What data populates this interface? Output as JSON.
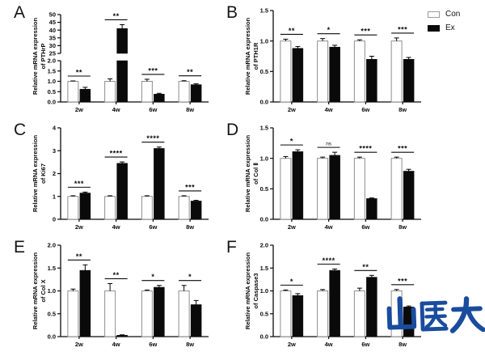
{
  "style": {
    "axis_color": "#0a0a0a",
    "con_fill": "#fefefe",
    "con_stroke": "#8f8f8f",
    "ex_fill": "#0a0a0a",
    "sig_color": "#0a0a0a"
  },
  "legend": {
    "items": [
      {
        "label": "Con",
        "fill": "#ffffff",
        "stroke": "#9a9a9a"
      },
      {
        "label": "Ex",
        "fill": "#0a0a0a",
        "stroke": "#0a0a0a"
      }
    ]
  },
  "watermark": {
    "text": "山医大",
    "color": "#1a4c9e"
  },
  "chart_data": [
    {
      "type": "bar",
      "panel": "A",
      "title": "",
      "ylabel": "Relative mRNA expression of PTHrP",
      "ylabel_lines": [
        "Relative mRNA expression",
        "of PTHrP"
      ],
      "categories": [
        "2w",
        "4w",
        "6w",
        "8w"
      ],
      "axis": {
        "grid": false,
        "segments": [
          {
            "min": 0,
            "max": 2,
            "ticks": [
              "0.0",
              "0.5",
              "1.0",
              "1.5",
              "2.0"
            ]
          },
          {
            "min": 25,
            "max": 50,
            "ticks": [
              "25",
              "30",
              "35",
              "40",
              "45",
              "50"
            ]
          }
        ]
      },
      "series": [
        {
          "name": "Con",
          "values": [
            1.0,
            1.0,
            1.0,
            1.0
          ],
          "errors": [
            0.02,
            0.12,
            0.1,
            0.03
          ]
        },
        {
          "name": "Ex",
          "values": [
            0.62,
            41.0,
            0.38,
            0.84
          ],
          "errors": [
            0.09,
            2.5,
            0.04,
            0.04
          ]
        }
      ],
      "significance": [
        "**",
        "**",
        "***",
        "**"
      ]
    },
    {
      "type": "bar",
      "panel": "B",
      "title": "",
      "ylabel": "Relative mRNA expression of PTH1R",
      "ylabel_lines": [
        "Relative mRNA expression",
        "of PTH1R"
      ],
      "categories": [
        "2w",
        "4w",
        "6w",
        "8w"
      ],
      "axis": {
        "grid": false,
        "segments": [
          {
            "min": 0,
            "max": 1.5,
            "ticks": [
              "0.0",
              "0.5",
              "1.0",
              "1.5"
            ]
          }
        ]
      },
      "series": [
        {
          "name": "Con",
          "values": [
            1.0,
            1.0,
            1.0,
            1.0
          ],
          "errors": [
            0.03,
            0.04,
            0.02,
            0.05
          ]
        },
        {
          "name": "Ex",
          "values": [
            0.88,
            0.9,
            0.7,
            0.7
          ],
          "errors": [
            0.03,
            0.03,
            0.05,
            0.03
          ]
        }
      ],
      "significance": [
        "**",
        "*",
        "***",
        "***"
      ]
    },
    {
      "type": "bar",
      "panel": "C",
      "title": "",
      "ylabel": "Relative mRNA expression of Ki67",
      "ylabel_lines": [
        "Relative mRNA expression",
        "of Ki67"
      ],
      "categories": [
        "2w",
        "4w",
        "6w",
        "8w"
      ],
      "axis": {
        "grid": false,
        "segments": [
          {
            "min": 0,
            "max": 4,
            "ticks": [
              "0",
              "1",
              "2",
              "3",
              "4"
            ]
          }
        ]
      },
      "series": [
        {
          "name": "Con",
          "values": [
            1.0,
            1.0,
            1.0,
            1.0
          ],
          "errors": [
            0.03,
            0.03,
            0.03,
            0.03
          ]
        },
        {
          "name": "Ex",
          "values": [
            1.15,
            2.45,
            3.1,
            0.8
          ],
          "errors": [
            0.04,
            0.06,
            0.06,
            0.03
          ]
        }
      ],
      "significance": [
        "***",
        "****",
        "****",
        "***"
      ]
    },
    {
      "type": "bar",
      "panel": "D",
      "title": "",
      "ylabel": "Relative mRNA expression of Col Ⅱ",
      "ylabel_lines": [
        "Relative mRNA expression",
        "of Col Ⅱ"
      ],
      "categories": [
        "2w",
        "4w",
        "6w",
        "8w"
      ],
      "axis": {
        "grid": false,
        "segments": [
          {
            "min": 0,
            "max": 1.5,
            "ticks": [
              "0.0",
              "0.5",
              "1.0",
              "1.5"
            ]
          }
        ]
      },
      "series": [
        {
          "name": "Con",
          "values": [
            1.0,
            1.0,
            1.0,
            1.0
          ],
          "errors": [
            0.03,
            0.02,
            0.02,
            0.02
          ]
        },
        {
          "name": "Ex",
          "values": [
            1.11,
            1.05,
            0.34,
            0.79
          ],
          "errors": [
            0.03,
            0.05,
            0.01,
            0.03
          ]
        }
      ],
      "significance": [
        "*",
        "ns",
        "****",
        "***"
      ]
    },
    {
      "type": "bar",
      "panel": "E",
      "title": "",
      "ylabel": "Relative mRNA expression of Col X",
      "ylabel_lines": [
        "Relative mRNA expression",
        "of Col X"
      ],
      "categories": [
        "2w",
        "4w",
        "6w",
        "8w"
      ],
      "axis": {
        "grid": false,
        "segments": [
          {
            "min": 0,
            "max": 2,
            "ticks": [
              "0.0",
              "0.5",
              "1.0",
              "1.5",
              "2.0"
            ]
          }
        ]
      },
      "series": [
        {
          "name": "Con",
          "values": [
            1.0,
            1.0,
            1.0,
            1.0
          ],
          "errors": [
            0.04,
            0.16,
            0.02,
            0.12
          ]
        },
        {
          "name": "Ex",
          "values": [
            1.45,
            0.03,
            1.08,
            0.7
          ],
          "errors": [
            0.12,
            0.01,
            0.04,
            0.09
          ]
        }
      ],
      "significance": [
        "**",
        "**",
        "*",
        "*"
      ]
    },
    {
      "type": "bar",
      "panel": "F",
      "title": "",
      "ylabel": "Relative mRNA expression of Caspase3",
      "ylabel_lines": [
        "Relative mRNA expression",
        "of Caspase3"
      ],
      "categories": [
        "2w",
        "4w",
        "6w",
        "8w"
      ],
      "axis": {
        "grid": false,
        "segments": [
          {
            "min": 0,
            "max": 2,
            "ticks": [
              "0.0",
              "0.5",
              "1.0",
              "1.5",
              "2.0"
            ]
          }
        ]
      },
      "series": [
        {
          "name": "Con",
          "values": [
            1.0,
            1.0,
            1.0,
            1.0
          ],
          "errors": [
            0.02,
            0.03,
            0.06,
            0.03
          ]
        },
        {
          "name": "Ex",
          "values": [
            0.9,
            1.45,
            1.3,
            0.65
          ],
          "errors": [
            0.04,
            0.03,
            0.04,
            0.02
          ]
        }
      ],
      "significance": [
        "*",
        "****",
        "**",
        "***"
      ]
    }
  ]
}
